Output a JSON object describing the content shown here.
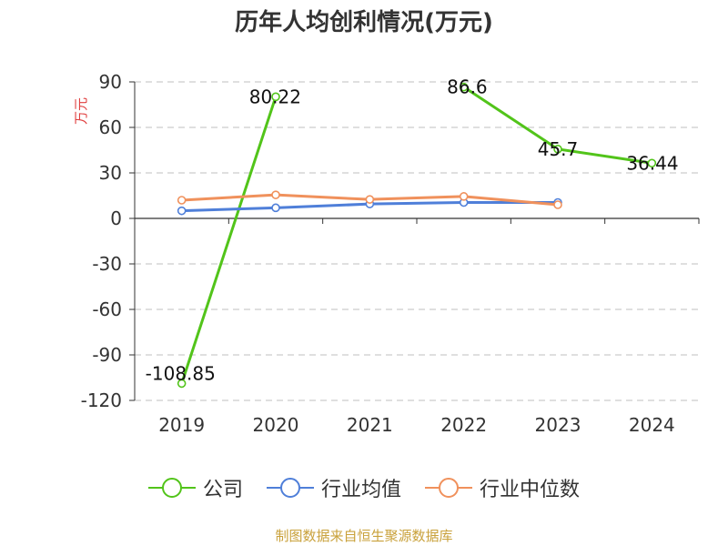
{
  "chart_data": {
    "type": "line",
    "title": "历年人均创利情况(万元)",
    "ylabel": "万元",
    "xlabel": "",
    "categories": [
      "2019",
      "2020",
      "2021",
      "2022",
      "2023",
      "2024"
    ],
    "ylim": [
      -120,
      90
    ],
    "yticks": [
      90,
      60,
      30,
      0,
      -30,
      -60,
      -90,
      -120
    ],
    "grid": true,
    "legend_position": "bottom",
    "series": [
      {
        "name": "公司",
        "color": "#52c41a",
        "values": [
          -108.85,
          80.22,
          null,
          86.6,
          45.7,
          36.44
        ],
        "labels": [
          "-108.85",
          "80.22",
          "",
          "86.6",
          "45.7",
          "36.44"
        ]
      },
      {
        "name": "行业均值",
        "color": "#4f7fd9",
        "values": [
          5,
          7,
          9.5,
          10.5,
          10.5,
          null
        ]
      },
      {
        "name": "行业中位数",
        "color": "#f0915c",
        "values": [
          12,
          15.5,
          12.5,
          14.5,
          9,
          null
        ]
      }
    ]
  },
  "source_text": "制图数据来自恒生聚源数据库",
  "colors": {
    "source": "#c9a13b",
    "unit": "#e04040",
    "grid": "#cccccc",
    "axis": "#333333"
  }
}
